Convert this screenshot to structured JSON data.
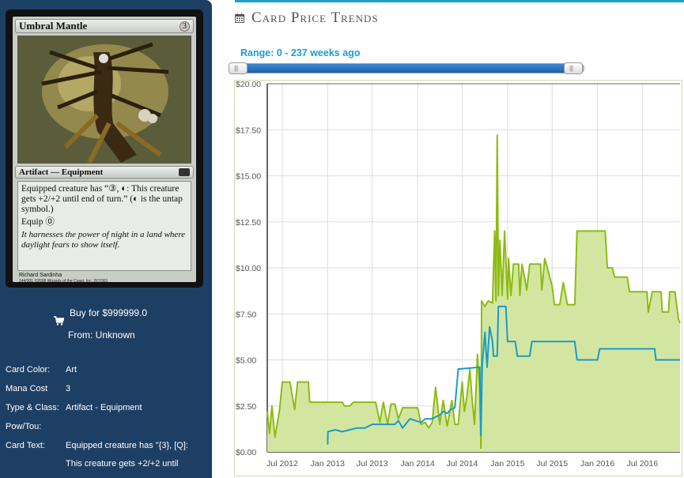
{
  "card": {
    "name": "Umbral Mantle",
    "mana_cost": "3",
    "type_line": "Artifact — Equipment",
    "rules_text_line1": "Equipped creature has “③, ◐: This creature gets +2/+2 until end of turn.” (◐ is the untap symbol.)",
    "rules_text_line2": "Equip ⓪",
    "flavor_text": "It harnesses the power of night in a land where daylight fears to show itself.",
    "artist": "Richard Sardinha",
    "copyright": "144/301 ©2008 Wizards of the Coast, Inc. 267/301"
  },
  "buy": {
    "label": "Buy for $999999.0",
    "from": "From: Unknown",
    "icon": "shopping-cart-icon"
  },
  "details": [
    {
      "key": "Card Color:",
      "value": "Art"
    },
    {
      "key": "Mana Cost",
      "value": "3"
    },
    {
      "key": "Type & Class:",
      "value": "Artifact - Equipment"
    },
    {
      "key": "Pow/Tou:",
      "value": ""
    },
    {
      "key": "Card Text:",
      "value": "Equipped creature has \"{3}, [Q]:"
    },
    {
      "key": "",
      "value": "This creature gets +2/+2 until"
    }
  ],
  "panel": {
    "title": "Card Price Trends",
    "title_icon": "calendar-icon",
    "range_label": "Range: 0 - 237 weeks ago",
    "accent": "#1e9bd0"
  },
  "chart_data": {
    "type": "area",
    "y_tick_labels": [
      "$20.00",
      "$17.50",
      "$15.00",
      "$12.50",
      "$10.00",
      "$7.50",
      "$5.00",
      "$2.50",
      "$0.00"
    ],
    "ylim": [
      0,
      20
    ],
    "x_tick_labels": [
      "Jul 2012",
      "Jan 2013",
      "Jul 2013",
      "Jan 2014",
      "Jul 2014",
      "Jan 2015",
      "Jul 2015",
      "Jan 2016",
      "Jul 2016"
    ],
    "xlim": [
      "2012-05-01",
      "2016-12-01"
    ],
    "grid": true,
    "series": [
      {
        "color": "#8dbb12",
        "fill": "#d3e6a1",
        "points": [
          [
            "2012-05-01",
            2.2
          ],
          [
            "2012-05-10",
            1.0
          ],
          [
            "2012-05-20",
            2.5
          ],
          [
            "2012-06-01",
            0.8
          ],
          [
            "2012-06-20",
            2.3
          ],
          [
            "2012-07-01",
            3.8
          ],
          [
            "2012-08-01",
            3.8
          ],
          [
            "2012-08-20",
            2.3
          ],
          [
            "2012-09-01",
            3.8
          ],
          [
            "2012-10-15",
            3.8
          ],
          [
            "2012-10-20",
            2.7
          ],
          [
            "2013-03-01",
            2.7
          ],
          [
            "2013-03-10",
            2.5
          ],
          [
            "2013-04-01",
            2.5
          ],
          [
            "2013-04-15",
            2.7
          ],
          [
            "2013-07-15",
            2.7
          ],
          [
            "2013-08-01",
            1.6
          ],
          [
            "2013-08-15",
            2.7
          ],
          [
            "2013-09-01",
            1.5
          ],
          [
            "2013-09-15",
            2.6
          ],
          [
            "2013-10-01",
            2.6
          ],
          [
            "2013-10-15",
            1.8
          ],
          [
            "2013-11-01",
            2.4
          ],
          [
            "2014-01-01",
            2.4
          ],
          [
            "2014-01-15",
            1.5
          ],
          [
            "2014-02-01",
            1.6
          ],
          [
            "2014-02-15",
            1.3
          ],
          [
            "2014-03-01",
            1.6
          ],
          [
            "2014-03-15",
            3.5
          ],
          [
            "2014-04-01",
            1.5
          ],
          [
            "2014-04-15",
            2.8
          ],
          [
            "2014-05-01",
            1.4
          ],
          [
            "2014-05-20",
            2.8
          ],
          [
            "2014-06-01",
            1.5
          ],
          [
            "2014-06-15",
            1.5
          ],
          [
            "2014-07-01",
            3.8
          ],
          [
            "2014-07-10",
            2.2
          ],
          [
            "2014-07-20",
            3.0
          ],
          [
            "2014-08-01",
            4.5
          ],
          [
            "2014-08-10",
            2.9
          ],
          [
            "2014-08-20",
            1.5
          ],
          [
            "2014-09-01",
            5.3
          ],
          [
            "2014-09-10",
            3.5
          ],
          [
            "2014-09-15",
            0.2
          ],
          [
            "2014-09-18",
            8.2
          ],
          [
            "2014-10-01",
            7.9
          ],
          [
            "2014-10-15",
            8.2
          ],
          [
            "2014-11-01",
            8.1
          ],
          [
            "2014-11-10",
            12.0
          ],
          [
            "2014-11-15",
            8.2
          ],
          [
            "2014-11-20",
            17.2
          ],
          [
            "2014-11-25",
            8.5
          ],
          [
            "2014-12-01",
            11.5
          ],
          [
            "2014-12-10",
            8.5
          ],
          [
            "2014-12-20",
            12.0
          ],
          [
            "2015-01-01",
            8.3
          ],
          [
            "2015-01-05",
            10.5
          ],
          [
            "2015-01-15",
            8.5
          ],
          [
            "2015-01-25",
            10.2
          ],
          [
            "2015-02-15",
            10.2
          ],
          [
            "2015-02-20",
            8.5
          ],
          [
            "2015-03-01",
            10.2
          ],
          [
            "2015-03-20",
            8.8
          ],
          [
            "2015-04-01",
            10.2
          ],
          [
            "2015-05-15",
            10.2
          ],
          [
            "2015-05-20",
            8.8
          ],
          [
            "2015-06-01",
            10.5
          ],
          [
            "2015-07-01",
            9.0
          ],
          [
            "2015-07-10",
            8.0
          ],
          [
            "2015-08-01",
            8.0
          ],
          [
            "2015-08-15",
            9.2
          ],
          [
            "2015-09-01",
            8.0
          ],
          [
            "2015-10-01",
            8.0
          ],
          [
            "2015-10-10",
            12.0
          ],
          [
            "2016-02-01",
            12.0
          ],
          [
            "2016-02-10",
            10.0
          ],
          [
            "2016-03-01",
            10.0
          ],
          [
            "2016-03-10",
            9.5
          ],
          [
            "2016-05-01",
            9.5
          ],
          [
            "2016-05-10",
            8.7
          ],
          [
            "2016-07-20",
            8.7
          ],
          [
            "2016-07-25",
            7.6
          ],
          [
            "2016-08-10",
            8.7
          ],
          [
            "2016-09-15",
            8.7
          ],
          [
            "2016-09-20",
            7.6
          ],
          [
            "2016-10-15",
            7.6
          ],
          [
            "2016-10-20",
            8.7
          ],
          [
            "2016-11-10",
            8.7
          ],
          [
            "2016-11-25",
            7.2
          ],
          [
            "2016-12-01",
            7.0
          ]
        ]
      },
      {
        "color": "#1a9bc9",
        "points": [
          [
            "2013-01-01",
            0.4
          ],
          [
            "2013-01-02",
            1.1
          ],
          [
            "2013-02-01",
            1.2
          ],
          [
            "2013-03-01",
            1.1
          ],
          [
            "2013-04-01",
            1.2
          ],
          [
            "2013-05-01",
            1.3
          ],
          [
            "2013-06-01",
            1.3
          ],
          [
            "2013-07-01",
            1.5
          ],
          [
            "2013-10-01",
            1.5
          ],
          [
            "2013-10-15",
            1.7
          ],
          [
            "2013-11-01",
            1.3
          ],
          [
            "2013-12-01",
            1.8
          ],
          [
            "2014-01-15",
            1.6
          ],
          [
            "2014-02-01",
            1.8
          ],
          [
            "2014-03-01",
            1.8
          ],
          [
            "2014-03-15",
            1.9
          ],
          [
            "2014-04-01",
            2.0
          ],
          [
            "2014-04-15",
            2.2
          ],
          [
            "2014-05-01",
            2.1
          ],
          [
            "2014-05-15",
            2.3
          ],
          [
            "2014-06-01",
            2.4
          ],
          [
            "2014-06-15",
            4.5
          ],
          [
            "2014-09-10",
            4.6
          ],
          [
            "2014-09-15",
            0.9
          ],
          [
            "2014-09-20",
            4.7
          ],
          [
            "2014-10-01",
            6.5
          ],
          [
            "2014-10-10",
            4.6
          ],
          [
            "2014-10-20",
            6.8
          ],
          [
            "2014-11-01",
            6.0
          ],
          [
            "2014-11-05",
            5.2
          ],
          [
            "2014-11-20",
            5.2
          ],
          [
            "2014-11-25",
            7.9
          ],
          [
            "2014-12-25",
            7.9
          ],
          [
            "2015-01-01",
            6.0
          ],
          [
            "2015-02-01",
            6.0
          ],
          [
            "2015-02-10",
            5.2
          ],
          [
            "2015-04-01",
            5.2
          ],
          [
            "2015-04-10",
            6.0
          ],
          [
            "2015-10-01",
            6.0
          ],
          [
            "2015-10-10",
            5.0
          ],
          [
            "2016-01-01",
            5.0
          ],
          [
            "2016-01-10",
            5.6
          ],
          [
            "2016-08-20",
            5.6
          ],
          [
            "2016-08-25",
            5.0
          ],
          [
            "2016-11-15",
            5.0
          ],
          [
            "2016-12-01",
            5.0
          ]
        ]
      }
    ]
  }
}
